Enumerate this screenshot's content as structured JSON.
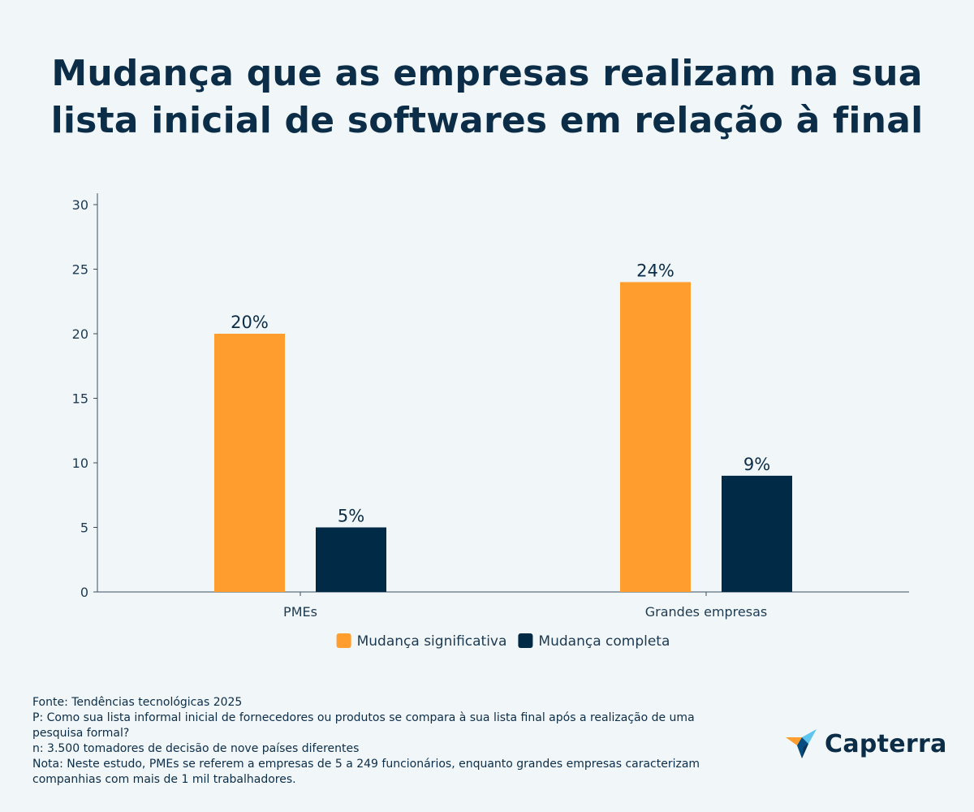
{
  "title_lines": [
    "Mudança que as empresas realizam na sua",
    "lista inicial de softwares em relação à final"
  ],
  "chart_data": {
    "type": "bar",
    "categories": [
      "PMEs",
      "Grandes empresas"
    ],
    "series": [
      {
        "name": "Mudança significativa",
        "color": "#ff9d2e",
        "values": [
          20,
          24
        ],
        "labels": [
          "20%",
          "24%"
        ]
      },
      {
        "name": "Mudança completa",
        "color": "#002a46",
        "values": [
          5,
          9
        ],
        "labels": [
          "5%",
          "9%"
        ]
      }
    ],
    "ylim": [
      0,
      30
    ],
    "yticks": [
      0,
      5,
      10,
      15,
      20,
      25,
      30
    ],
    "legend_position": "bottom-center",
    "grid": false
  },
  "footnotes": [
    "Fonte: Tendências tecnológicas 2025",
    "P: Como sua lista informal inicial de fornecedores ou produtos se compara à sua lista final após a realização de uma pesquisa formal?",
    "n: 3.500 tomadores de decisão de nove países diferentes",
    "Nota: Neste estudo, PMEs se referem a empresas de 5 a 249 funcionários, enquanto grandes empresas caracterizam companhias com mais de 1 mil trabalhadores."
  ],
  "logo": {
    "text": "Capterra",
    "icon": "capterra-arrow-icon"
  }
}
